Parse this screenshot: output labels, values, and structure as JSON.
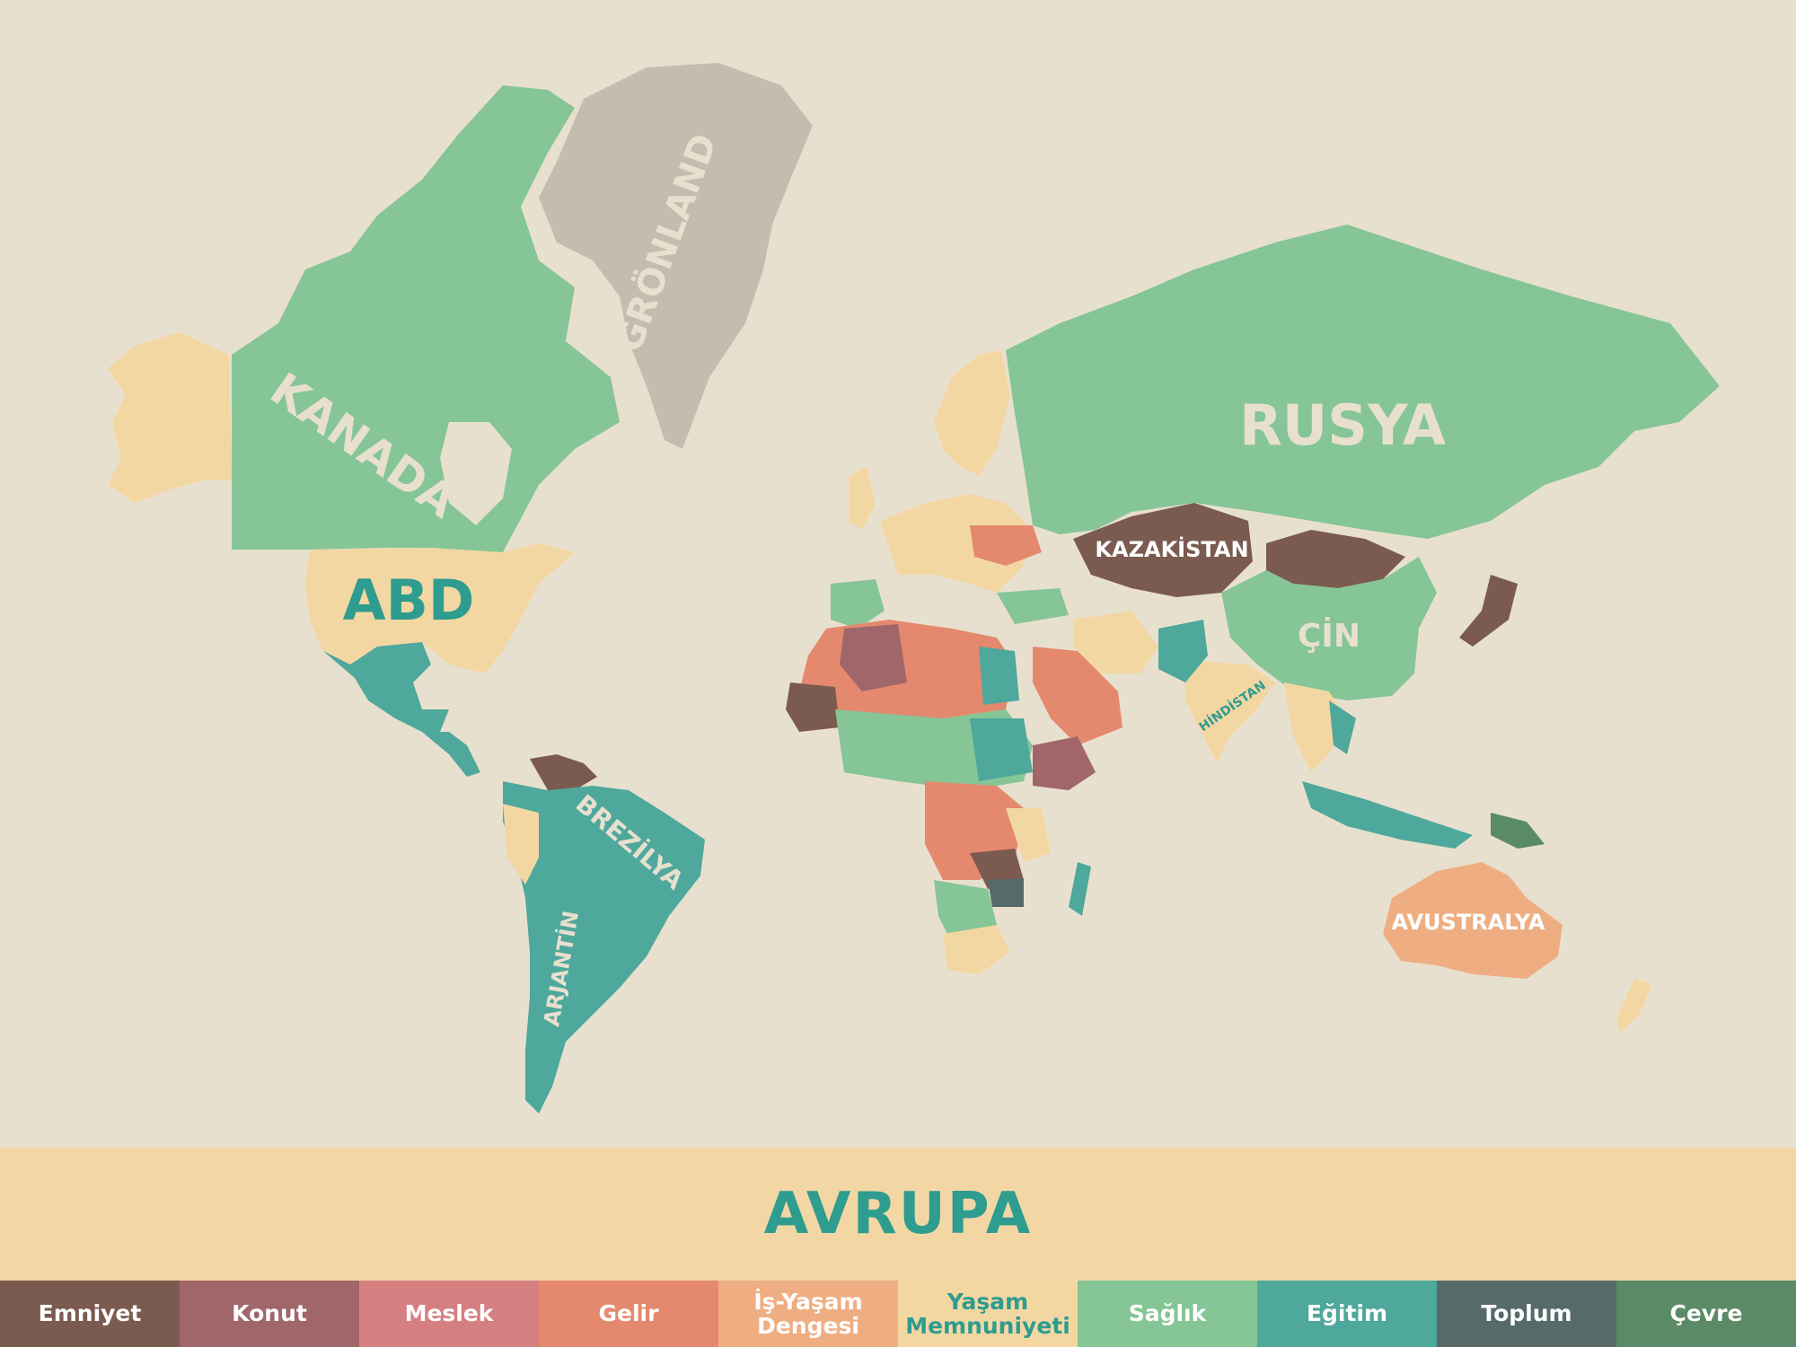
{
  "map": {
    "labels": {
      "kanada": "KANADA",
      "gronland": "GRÖNLAND",
      "abd": "ABD",
      "rusya": "RUSYA",
      "kazakistan": "KAZAKİSTAN",
      "cin": "ÇİN",
      "hindistan": "HİNDİSTAN",
      "brezilya": "BREZİLYA",
      "arjantin": "ARJANTİN",
      "avustralya": "AVUSTRALYA"
    },
    "colors": {
      "background": "#e8e0cf",
      "emniyet": "#7b5a50",
      "konut": "#a0666a",
      "meslek": "#d67f80",
      "gelir": "#e4896d",
      "is_yasam": "#efae82",
      "yasam": "#f3d7a3",
      "saglik": "#86c595",
      "egitim": "#4ea89b",
      "toplum": "#566a69",
      "cevre": "#5b8a66",
      "nodata": "#c5bbae"
    }
  },
  "region": {
    "title": "AVRUPA"
  },
  "legend": {
    "items": [
      {
        "label": "Emniyet",
        "color": "#7b5a50"
      },
      {
        "label": "Konut",
        "color": "#a0666a"
      },
      {
        "label": "Meslek",
        "color": "#d67f80"
      },
      {
        "label": "Gelir",
        "color": "#e4896d"
      },
      {
        "label": "İş-Yaşam\nDengesi",
        "color": "#efae82"
      },
      {
        "label": "Yaşam\nMemnuniyeti",
        "color": "#f3d7a3"
      },
      {
        "label": "Sağlık",
        "color": "#86c595"
      },
      {
        "label": "Eğitim",
        "color": "#4ea89b"
      },
      {
        "label": "Toplum",
        "color": "#566a69"
      },
      {
        "label": "Çevre",
        "color": "#5b8a66"
      }
    ]
  }
}
